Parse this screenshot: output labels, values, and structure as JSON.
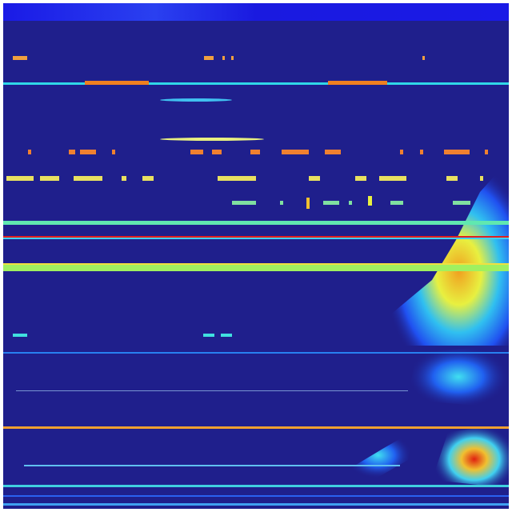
{
  "chart_data": {
    "type": "heatmap",
    "colormap": "jet",
    "title": "",
    "xlabel": "",
    "ylabel": "",
    "grid": false,
    "legend": "none",
    "colors": {
      "background": "#1f1f8c",
      "low": "#1818e8",
      "mid_low": "#1e90ff",
      "mid": "#40e0d0",
      "mid_high": "#e8f040",
      "high": "#f08020",
      "max": "#e01010"
    }
  }
}
